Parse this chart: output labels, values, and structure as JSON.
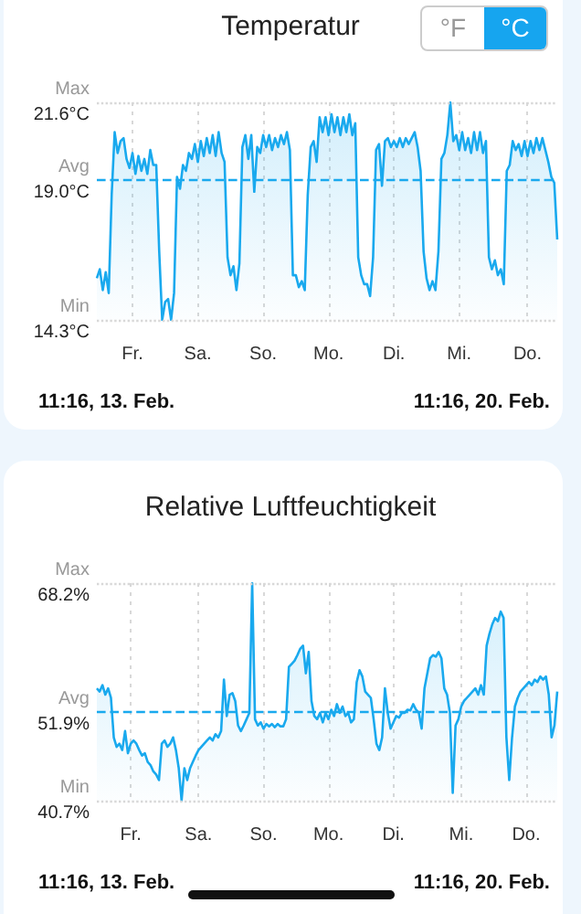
{
  "chart_data": [
    {
      "type": "area",
      "title": "Temperatur",
      "annotations": [
        "°F",
        "°C",
        "11:16,  13. Feb.",
        "11:16,  20. Feb."
      ],
      "color": "#19a9ee",
      "grid": "x",
      "marker": "none",
      "line_style": "solid",
      "categories": [
        null,
        null,
        null,
        null,
        null,
        null,
        null,
        null,
        null,
        null,
        null,
        null,
        "Fr.",
        null,
        null,
        null,
        null,
        null,
        null,
        null,
        null,
        null,
        null,
        null,
        null,
        null,
        null,
        null,
        null,
        null,
        null,
        null,
        null,
        null,
        "Sa.",
        null,
        null,
        null,
        null,
        null,
        null,
        null,
        null,
        null,
        null,
        null,
        null,
        null,
        null,
        null,
        null,
        null,
        null,
        null,
        null,
        null,
        "So.",
        null,
        null,
        null,
        null,
        null,
        null,
        null,
        null,
        null,
        null,
        null,
        null,
        null,
        null,
        null,
        null,
        null,
        null,
        null,
        null,
        null,
        "Mo.",
        null,
        null,
        null,
        null,
        null,
        null,
        null,
        null,
        null,
        null,
        null,
        null,
        null,
        null,
        null,
        null,
        null,
        null,
        null,
        null,
        null,
        "Di.",
        null,
        null,
        null,
        null,
        null,
        null,
        null,
        null,
        null,
        null,
        null,
        null,
        null,
        null,
        null,
        null,
        null,
        null,
        null,
        null,
        null,
        "Mi.",
        null,
        null,
        null,
        null,
        null,
        null,
        null,
        null,
        null,
        null,
        null,
        null,
        null,
        null,
        null,
        null,
        null,
        null,
        null,
        null,
        null,
        null,
        "Do.",
        null,
        null,
        null,
        null,
        null,
        null,
        null,
        null,
        null,
        null
      ],
      "values": [
        15.7,
        16.0,
        15.3,
        15.9,
        15.2,
        18.5,
        20.6,
        19.9,
        20.3,
        20.4,
        19.7,
        19.4,
        19.9,
        19.2,
        19.8,
        19.3,
        19.7,
        19.2,
        20.0,
        19.5,
        19.5,
        16.6,
        14.3,
        14.9,
        15.0,
        14.3,
        15.2,
        19.1,
        18.7,
        19.5,
        19.3,
        19.9,
        19.7,
        20.2,
        19.6,
        20.3,
        19.8,
        20.4,
        19.9,
        20.5,
        19.8,
        20.6,
        19.9,
        19.6,
        16.4,
        15.8,
        16.1,
        15.3,
        16.2,
        20.1,
        20.5,
        19.7,
        20.5,
        18.6,
        20.1,
        19.9,
        20.5,
        20.1,
        20.5,
        20.0,
        20.4,
        20.1,
        20.5,
        20.2,
        20.6,
        20.0,
        15.8,
        15.8,
        15.4,
        15.6,
        15.3,
        18.5,
        20.1,
        20.3,
        19.6,
        21.1,
        20.6,
        21.1,
        20.5,
        21.2,
        20.6,
        21.1,
        20.5,
        21.1,
        20.6,
        21.2,
        20.5,
        20.9,
        16.4,
        15.8,
        15.5,
        15.5,
        15.1,
        16.4,
        20.0,
        20.2,
        18.8,
        20.3,
        20.4,
        20.1,
        20.3,
        20.1,
        20.4,
        20.1,
        20.4,
        20.2,
        20.4,
        20.6,
        20.1,
        19.3,
        16.6,
        15.7,
        15.3,
        15.6,
        15.3,
        16.6,
        19.7,
        19.9,
        20.5,
        21.6,
        20.3,
        20.5,
        20.0,
        20.6,
        20.0,
        20.4,
        19.9,
        20.6,
        20.0,
        20.6,
        19.9,
        20.3,
        16.4,
        16.0,
        16.3,
        15.8,
        16.0,
        15.5,
        19.3,
        19.5,
        20.3,
        20.0,
        20.2,
        19.8,
        20.3,
        19.8,
        20.3,
        19.9,
        20.4,
        20.0,
        20.4,
        20.0,
        19.6,
        19.1,
        18.9,
        17.0
      ],
      "ylim": [
        14.3,
        21.6
      ],
      "yticks": [
        {
          "value": 14.3,
          "label": "14.3°C"
        },
        {
          "value": 19.0,
          "label": "19.0°C"
        },
        {
          "value": 21.6,
          "label": "21.6°C"
        }
      ],
      "ref_lines": [
        {
          "axis": "y",
          "value": 21.6,
          "label": "Max",
          "line_style": "dotted",
          "color": "#d8d8d8"
        },
        {
          "axis": "y",
          "value": 19.0,
          "label": "Avg",
          "line_style": "dashed",
          "color": "#19a9ee"
        },
        {
          "axis": "y",
          "value": 14.3,
          "label": "Min",
          "line_style": "dotted",
          "color": "#d8d8d8"
        }
      ]
    },
    {
      "type": "area",
      "title": "Relative Luftfeuchtigkeit",
      "annotations": [
        "11:16,  13. Feb.",
        "11:16,  20. Feb."
      ],
      "color": "#19a9ee",
      "grid": "x",
      "marker": "none",
      "line_style": "solid",
      "categories": [
        null,
        null,
        null,
        null,
        null,
        null,
        null,
        null,
        null,
        null,
        null,
        null,
        "Fr.",
        null,
        null,
        null,
        null,
        null,
        null,
        null,
        null,
        null,
        null,
        null,
        null,
        null,
        null,
        null,
        null,
        null,
        null,
        null,
        null,
        null,
        null,
        null,
        "Sa.",
        null,
        null,
        null,
        null,
        null,
        null,
        null,
        null,
        null,
        null,
        null,
        null,
        null,
        null,
        null,
        null,
        null,
        null,
        null,
        null,
        null,
        null,
        "So.",
        null,
        null,
        null,
        null,
        null,
        null,
        null,
        null,
        null,
        null,
        null,
        null,
        null,
        null,
        null,
        null,
        null,
        null,
        null,
        null,
        null,
        null,
        "Mo.",
        null,
        null,
        null,
        null,
        null,
        null,
        null,
        null,
        null,
        null,
        null,
        null,
        null,
        null,
        null,
        null,
        null,
        null,
        null,
        null,
        null,
        null,
        "Di.",
        null,
        null,
        null,
        null,
        null,
        null,
        null,
        null,
        null,
        null,
        null,
        null,
        null,
        null,
        null,
        null,
        null,
        null,
        null,
        null,
        null,
        null,
        null,
        "Mi.",
        null,
        null,
        null,
        null,
        null,
        null,
        null,
        null,
        null,
        null,
        null,
        null,
        null,
        null,
        null,
        null,
        null,
        null,
        null,
        null,
        null,
        null,
        "Do.",
        null,
        null,
        null,
        null,
        null,
        null,
        null,
        null,
        null,
        null,
        null
      ],
      "values": [
        54.9,
        54.5,
        55.3,
        54.1,
        54.9,
        53.7,
        48.7,
        47.5,
        47.9,
        47.1,
        49.5,
        46.7,
        47.9,
        48.3,
        47.9,
        47.1,
        46.4,
        46.7,
        45.6,
        45.2,
        44.4,
        44.0,
        43.3,
        47.9,
        48.3,
        47.5,
        47.9,
        48.7,
        47.1,
        44.8,
        40.7,
        44.8,
        43.3,
        44.8,
        45.6,
        46.4,
        47.1,
        47.5,
        47.9,
        48.3,
        48.7,
        48.3,
        49.1,
        48.7,
        49.5,
        56.0,
        51.4,
        54.1,
        54.3,
        53.3,
        50.2,
        49.5,
        50.2,
        51.0,
        51.8,
        68.2,
        51.0,
        50.2,
        50.6,
        49.8,
        50.4,
        50.1,
        50.4,
        50.0,
        50.4,
        50.1,
        50.1,
        51.0,
        57.6,
        58.0,
        58.4,
        59.1,
        59.9,
        60.3,
        56.8,
        59.5,
        53.3,
        51.4,
        51.0,
        51.8,
        50.6,
        51.8,
        51.0,
        52.2,
        51.4,
        52.9,
        51.8,
        52.6,
        51.4,
        51.8,
        50.6,
        51.0,
        55.7,
        57.2,
        56.4,
        54.5,
        54.1,
        53.7,
        51.0,
        47.9,
        47.1,
        48.7,
        54.9,
        51.8,
        49.8,
        50.6,
        51.4,
        51.2,
        51.8,
        51.8,
        52.2,
        52.1,
        52.9,
        52.2,
        51.8,
        49.8,
        54.9,
        56.8,
        58.7,
        59.1,
        58.9,
        59.5,
        58.7,
        54.9,
        54.1,
        51.8,
        41.7,
        50.2,
        51.0,
        52.6,
        53.3,
        53.7,
        54.1,
        54.5,
        54.9,
        54.1,
        55.3,
        54.1,
        60.3,
        61.8,
        63.0,
        63.8,
        63.4,
        64.6,
        63.8,
        48.7,
        43.3,
        48.7,
        52.6,
        53.7,
        54.5,
        54.9,
        55.3,
        55.7,
        55.3,
        56.0,
        55.7,
        56.4,
        56.0,
        56.4,
        54.1,
        48.7,
        50.2,
        54.5
      ],
      "ylim": [
        40.7,
        68.2
      ],
      "yticks": [
        {
          "value": 40.7,
          "label": "40.7%"
        },
        {
          "value": 51.9,
          "label": "51.9%"
        },
        {
          "value": 68.2,
          "label": "68.2%"
        }
      ],
      "ref_lines": [
        {
          "axis": "y",
          "value": 68.2,
          "label": "Max",
          "line_style": "dotted",
          "color": "#d8d8d8"
        },
        {
          "axis": "y",
          "value": 51.9,
          "label": "Avg",
          "line_style": "dashed",
          "color": "#19a9ee"
        },
        {
          "axis": "y",
          "value": 40.7,
          "label": "Min",
          "line_style": "dotted",
          "color": "#d8d8d8"
        }
      ]
    }
  ]
}
